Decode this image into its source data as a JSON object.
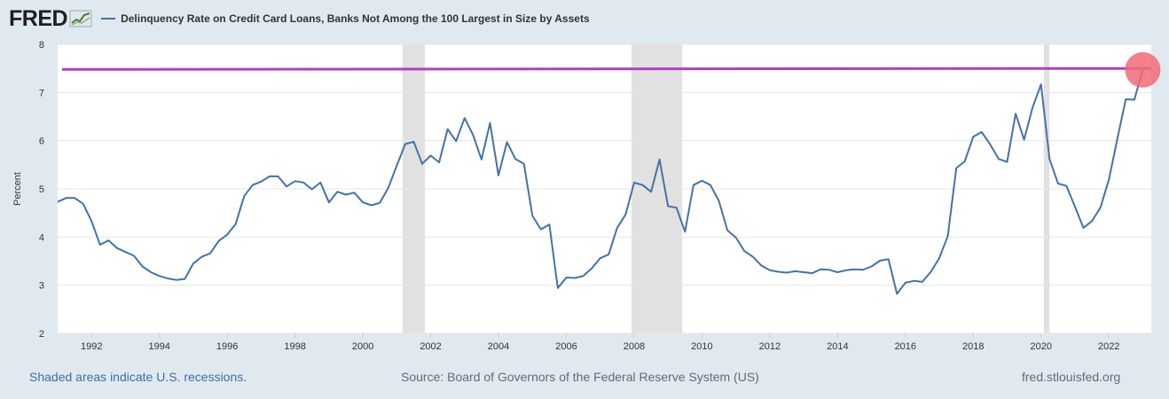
{
  "header": {
    "logo_text": "FRED",
    "logo_icon": "chart-line-icon",
    "legend_label": "Delinquency Rate on Credit Card Loans, Banks Not Among the 100 Largest in Size by Assets"
  },
  "footer": {
    "recessions_note": "Shaded areas indicate U.S. recessions.",
    "source": "Source: Board of Governors of the Federal Reserve System (US)",
    "site": "fred.stlouisfed.org"
  },
  "colors": {
    "series": "#4572a7",
    "annotation_line": "#b13fc2",
    "highlight": "#f06b78",
    "recession": "#e1e1e1",
    "background": "#e1e9f0"
  },
  "chart_data": {
    "type": "line",
    "title": "Delinquency Rate on Credit Card Loans, Banks Not Among the 100 Largest in Size by Assets",
    "xlabel": "",
    "ylabel": "Percent",
    "xlim": [
      1991.0,
      2023.25
    ],
    "ylim": [
      2,
      8
    ],
    "y_ticks": [
      2,
      3,
      4,
      5,
      6,
      7,
      8
    ],
    "x_ticks": [
      1992,
      1994,
      1996,
      1998,
      2000,
      2002,
      2004,
      2006,
      2008,
      2010,
      2012,
      2014,
      2016,
      2018,
      2020,
      2022
    ],
    "grid": true,
    "recessions": [
      [
        2001.17,
        2001.83
      ],
      [
        2007.92,
        2009.42
      ],
      [
        2020.08,
        2020.25
      ]
    ],
    "annotation_line": {
      "y_start": 7.48,
      "y_end": 7.5
    },
    "highlight_point": {
      "x": 2023.0,
      "y": 7.47
    },
    "series": [
      {
        "name": "Delinquency Rate on Credit Card Loans, Banks Not Among the 100 Largest in Size by Assets",
        "x": [
          1991.0,
          1991.25,
          1991.5,
          1991.75,
          1992.0,
          1992.25,
          1992.5,
          1992.75,
          1993.0,
          1993.25,
          1993.5,
          1993.75,
          1994.0,
          1994.25,
          1994.5,
          1994.75,
          1995.0,
          1995.25,
          1995.5,
          1995.75,
          1996.0,
          1996.25,
          1996.5,
          1996.75,
          1997.0,
          1997.25,
          1997.5,
          1997.75,
          1998.0,
          1998.25,
          1998.5,
          1998.75,
          1999.0,
          1999.25,
          1999.5,
          1999.75,
          2000.0,
          2000.25,
          2000.5,
          2000.75,
          2001.0,
          2001.25,
          2001.5,
          2001.75,
          2002.0,
          2002.25,
          2002.5,
          2002.75,
          2003.0,
          2003.25,
          2003.5,
          2003.75,
          2004.0,
          2004.25,
          2004.5,
          2004.75,
          2005.0,
          2005.25,
          2005.5,
          2005.75,
          2006.0,
          2006.25,
          2006.5,
          2006.75,
          2007.0,
          2007.25,
          2007.5,
          2007.75,
          2008.0,
          2008.25,
          2008.5,
          2008.75,
          2009.0,
          2009.25,
          2009.5,
          2009.75,
          2010.0,
          2010.25,
          2010.5,
          2010.75,
          2011.0,
          2011.25,
          2011.5,
          2011.75,
          2012.0,
          2012.25,
          2012.5,
          2012.75,
          2013.0,
          2013.25,
          2013.5,
          2013.75,
          2014.0,
          2014.25,
          2014.5,
          2014.75,
          2015.0,
          2015.25,
          2015.5,
          2015.75,
          2016.0,
          2016.25,
          2016.5,
          2016.75,
          2017.0,
          2017.25,
          2017.5,
          2017.75,
          2018.0,
          2018.25,
          2018.5,
          2018.75,
          2019.0,
          2019.25,
          2019.5,
          2019.75,
          2020.0,
          2020.25,
          2020.5,
          2020.75,
          2021.0,
          2021.25,
          2021.5,
          2021.75,
          2022.0,
          2022.25,
          2022.5,
          2022.75,
          2023.0
        ],
        "values": [
          4.73,
          4.81,
          4.81,
          4.69,
          4.33,
          3.84,
          3.93,
          3.77,
          3.69,
          3.61,
          3.39,
          3.27,
          3.19,
          3.14,
          3.11,
          3.13,
          3.45,
          3.59,
          3.66,
          3.92,
          4.05,
          4.27,
          4.85,
          5.08,
          5.15,
          5.26,
          5.26,
          5.05,
          5.16,
          5.13,
          4.99,
          5.13,
          4.72,
          4.94,
          4.88,
          4.92,
          4.72,
          4.66,
          4.71,
          5.02,
          5.48,
          5.93,
          5.98,
          5.52,
          5.69,
          5.55,
          6.24,
          5.99,
          6.47,
          6.12,
          5.61,
          6.37,
          5.28,
          5.97,
          5.62,
          5.52,
          4.44,
          4.16,
          4.26,
          2.94,
          3.16,
          3.15,
          3.19,
          3.35,
          3.56,
          3.64,
          4.19,
          4.47,
          5.13,
          5.08,
          4.94,
          5.61,
          4.64,
          4.61,
          4.11,
          5.08,
          5.17,
          5.08,
          4.75,
          4.14,
          3.99,
          3.71,
          3.59,
          3.41,
          3.31,
          3.28,
          3.26,
          3.29,
          3.27,
          3.25,
          3.33,
          3.32,
          3.27,
          3.31,
          3.33,
          3.32,
          3.39,
          3.51,
          3.54,
          2.82,
          3.05,
          3.09,
          3.07,
          3.28,
          3.56,
          4.02,
          5.43,
          5.57,
          6.08,
          6.18,
          5.92,
          5.62,
          5.56,
          6.56,
          6.02,
          6.69,
          7.17,
          5.62,
          5.11,
          5.06,
          4.63,
          4.19,
          4.33,
          4.61,
          5.19,
          6.04,
          6.86,
          6.85,
          7.47
        ]
      }
    ]
  }
}
